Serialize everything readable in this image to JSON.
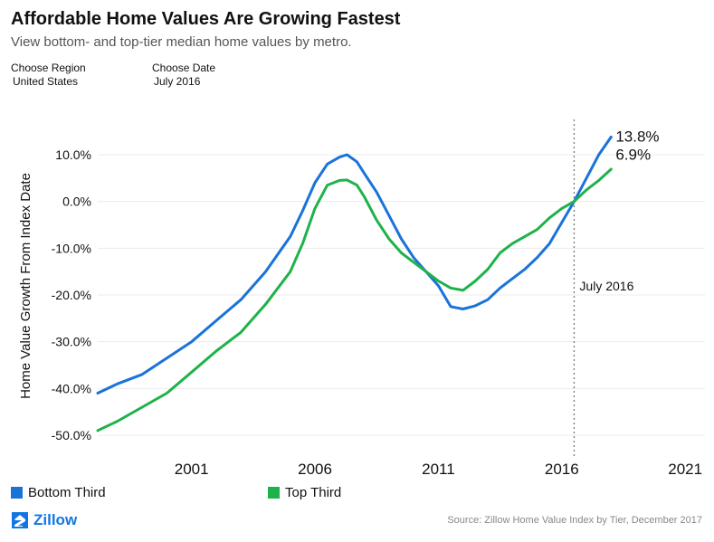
{
  "header": {
    "title": "Affordable Home Values Are Growing Fastest",
    "subtitle": "View bottom- and top-tier median home values by metro."
  },
  "controls": {
    "region_label": "Choose Region",
    "region_value": "United States",
    "date_label": "Choose Date",
    "date_value": "July 2016"
  },
  "colors": {
    "bottom_third": "#1a73d9",
    "top_third": "#1fb24a",
    "brand": "#1277e1"
  },
  "chart_data": {
    "type": "line",
    "title": "",
    "xlabel": "",
    "ylabel": "Home Value Growth From Index Date",
    "ylim": [
      -50,
      10
    ],
    "xlim": [
      1997.2,
      2021.8
    ],
    "y_ticks": [
      "10.0%",
      "0.0%",
      "-10.0%",
      "-20.0%",
      "-30.0%",
      "-40.0%",
      "-50.0%"
    ],
    "y_tick_values": [
      10,
      0,
      -10,
      -20,
      -30,
      -40,
      -50
    ],
    "x_ticks": [
      "2001",
      "2006",
      "2011",
      "2016",
      "2021"
    ],
    "x_tick_values": [
      2001,
      2006,
      2011,
      2016,
      2021
    ],
    "reference_line": {
      "x": 2016.5,
      "label": "July 2016"
    },
    "end_labels": [
      "13.8%",
      "6.9%"
    ],
    "grid": true,
    "legend_position": "bottom",
    "series": [
      {
        "name": "Bottom Third",
        "x": [
          1997.2,
          1998,
          1999,
          2000,
          2001,
          2002,
          2003,
          2004,
          2005,
          2005.5,
          2006,
          2006.5,
          2007,
          2007.3,
          2007.7,
          2008,
          2008.5,
          2009,
          2009.5,
          2010,
          2010.5,
          2011,
          2011.5,
          2012,
          2012.5,
          2013,
          2013.5,
          2014,
          2014.5,
          2015,
          2015.5,
          2016,
          2016.5,
          2017,
          2017.5,
          2018
        ],
        "values": [
          -41,
          -39,
          -37,
          -33.5,
          -30,
          -25.5,
          -21,
          -15,
          -7.5,
          -2,
          4,
          8,
          9.5,
          10,
          8.5,
          6,
          2,
          -3,
          -8,
          -12,
          -15,
          -18,
          -22.5,
          -23,
          -22.3,
          -21,
          -18.5,
          -16.5,
          -14.5,
          -12,
          -9,
          -4.5,
          0,
          5,
          10,
          13.8
        ]
      },
      {
        "name": "Top Third",
        "x": [
          1997.2,
          1998,
          1999,
          2000,
          2001,
          2002,
          2003,
          2004,
          2005,
          2005.5,
          2006,
          2006.5,
          2007,
          2007.3,
          2007.7,
          2008,
          2008.5,
          2009,
          2009.5,
          2010,
          2010.5,
          2011,
          2011.5,
          2012,
          2012.5,
          2013,
          2013.5,
          2014,
          2014.5,
          2015,
          2015.5,
          2016,
          2016.5,
          2017,
          2017.5,
          2018
        ],
        "values": [
          -49,
          -47,
          -44,
          -41,
          -36.5,
          -32,
          -28,
          -22,
          -15,
          -9,
          -1.5,
          3.5,
          4.5,
          4.6,
          3.5,
          1,
          -4,
          -8,
          -11,
          -13,
          -15,
          -17,
          -18.5,
          -19,
          -17,
          -14.5,
          -11,
          -9,
          -7.5,
          -6,
          -3.5,
          -1.5,
          0,
          2.5,
          4.5,
          6.9
        ]
      }
    ]
  },
  "legend": {
    "bottom_label": "Bottom Third",
    "top_label": "Top Third"
  },
  "footer": {
    "brand": "Zillow",
    "source": "Source: Zillow Home Value Index by Tier, December 2017"
  }
}
